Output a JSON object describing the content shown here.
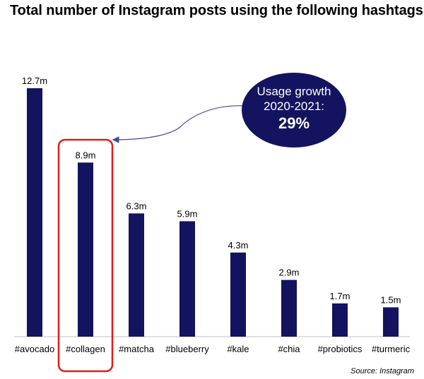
{
  "title": "Total number of Instagram posts using the following hashtags:",
  "source": "Source: Instagram",
  "callout": {
    "line1": "Usage growth",
    "line2": "2020-2021:",
    "value": "29%"
  },
  "colors": {
    "bar": "#14135f",
    "highlight": "#e01b1b",
    "callout_fill": "#14135f",
    "arrow": "#3b4a9a"
  },
  "highlighted_category": "#collagen",
  "chart_data": {
    "type": "bar",
    "title": "Total number of Instagram posts using the following hashtags:",
    "xlabel": "",
    "ylabel": "",
    "categories": [
      "#avocado",
      "#collagen",
      "#matcha",
      "#blueberry",
      "#kale",
      "#chia",
      "#probiotics",
      "#turmeric"
    ],
    "values": [
      12.7,
      8.9,
      6.3,
      5.9,
      4.3,
      2.9,
      1.7,
      1.5
    ],
    "data_labels": [
      "12.7m",
      "8.9m",
      "6.3m",
      "5.9m",
      "4.3m",
      "2.9m",
      "1.7m",
      "1.5m"
    ],
    "unit": "m",
    "ylim": [
      0,
      12.7
    ],
    "grid": false,
    "legend": "none"
  }
}
